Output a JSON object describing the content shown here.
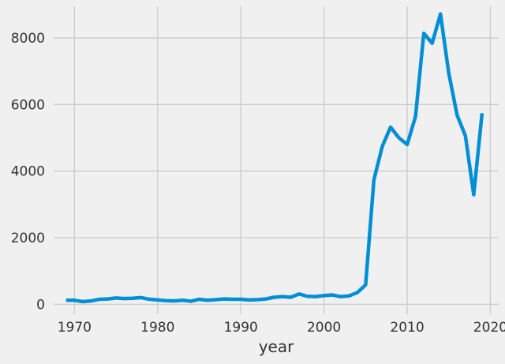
{
  "chart_data": {
    "type": "line",
    "title": "",
    "xlabel": "year",
    "ylabel": "",
    "xlim": [
      1967.5,
      2021.0
    ],
    "ylim": [
      -300,
      8950
    ],
    "xticks": [
      1970,
      1980,
      1990,
      2000,
      2010,
      2020
    ],
    "yticks": [
      0,
      2000,
      4000,
      6000,
      8000
    ],
    "grid": true,
    "series": [
      {
        "color": "#008fd5",
        "x": [
          1969,
          1970,
          1971,
          1972,
          1973,
          1974,
          1975,
          1976,
          1977,
          1978,
          1979,
          1980,
          1981,
          1982,
          1983,
          1984,
          1985,
          1986,
          1987,
          1988,
          1989,
          1990,
          1991,
          1992,
          1993,
          1994,
          1995,
          1996,
          1997,
          1998,
          1999,
          2000,
          2001,
          2002,
          2003,
          2004,
          2005,
          2006,
          2007,
          2008,
          2009,
          2010,
          2011,
          2012,
          2013,
          2014,
          2015,
          2016,
          2017,
          2018,
          2019
        ],
        "y": [
          120,
          120,
          80,
          100,
          150,
          160,
          190,
          170,
          180,
          200,
          150,
          130,
          110,
          100,
          120,
          90,
          150,
          120,
          140,
          160,
          150,
          150,
          130,
          140,
          160,
          210,
          230,
          210,
          310,
          240,
          230,
          260,
          280,
          230,
          250,
          350,
          580,
          3740,
          4740,
          5320,
          5000,
          4800,
          5640,
          8140,
          7840,
          8720,
          6940,
          5680,
          5060,
          3290,
          5740
        ]
      }
    ]
  }
}
